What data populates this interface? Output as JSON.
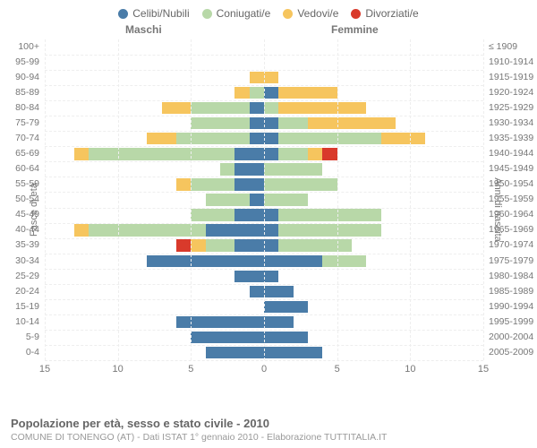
{
  "legend": [
    {
      "label": "Celibi/Nubili",
      "color": "#4a7ca8"
    },
    {
      "label": "Coniugati/e",
      "color": "#b8d8a8"
    },
    {
      "label": "Vedovi/e",
      "color": "#f6c55e"
    },
    {
      "label": "Divorziati/e",
      "color": "#d93a2b"
    }
  ],
  "headers": {
    "male": "Maschi",
    "female": "Femmine"
  },
  "axis_left_title": "Fasce di età",
  "axis_right_title": "Anni di nascita",
  "caption_title": "Popolazione per età, sesso e stato civile - 2010",
  "caption_sub": "COMUNE DI TONENGO (AT) - Dati ISTAT 1° gennaio 2010 - Elaborazione TUTTITALIA.IT",
  "x_max": 15,
  "x_ticks_male": [
    15,
    10,
    5,
    0
  ],
  "x_ticks_female": [
    5,
    10,
    15
  ],
  "colors": {
    "single": "#4a7ca8",
    "married": "#b8d8a8",
    "widowed": "#f6c55e",
    "divorced": "#d93a2b",
    "grid": "#eeeeee",
    "center": "#999999",
    "bg": "#ffffff"
  },
  "rows": [
    {
      "age": "100+",
      "birth": "≤ 1909",
      "m": {
        "s": 0,
        "m": 0,
        "w": 0,
        "d": 0
      },
      "f": {
        "s": 0,
        "m": 0,
        "w": 0,
        "d": 0
      }
    },
    {
      "age": "95-99",
      "birth": "1910-1914",
      "m": {
        "s": 0,
        "m": 0,
        "w": 0,
        "d": 0
      },
      "f": {
        "s": 0,
        "m": 0,
        "w": 0,
        "d": 0
      }
    },
    {
      "age": "90-94",
      "birth": "1915-1919",
      "m": {
        "s": 0,
        "m": 0,
        "w": 1,
        "d": 0
      },
      "f": {
        "s": 0,
        "m": 0,
        "w": 1,
        "d": 0
      }
    },
    {
      "age": "85-89",
      "birth": "1920-1924",
      "m": {
        "s": 0,
        "m": 1,
        "w": 1,
        "d": 0
      },
      "f": {
        "s": 1,
        "m": 0,
        "w": 4,
        "d": 0
      }
    },
    {
      "age": "80-84",
      "birth": "1925-1929",
      "m": {
        "s": 1,
        "m": 4,
        "w": 2,
        "d": 0
      },
      "f": {
        "s": 0,
        "m": 1,
        "w": 6,
        "d": 0
      }
    },
    {
      "age": "75-79",
      "birth": "1930-1934",
      "m": {
        "s": 1,
        "m": 4,
        "w": 0,
        "d": 0
      },
      "f": {
        "s": 1,
        "m": 2,
        "w": 6,
        "d": 0
      }
    },
    {
      "age": "70-74",
      "birth": "1935-1939",
      "m": {
        "s": 1,
        "m": 5,
        "w": 2,
        "d": 0
      },
      "f": {
        "s": 1,
        "m": 7,
        "w": 3,
        "d": 0
      }
    },
    {
      "age": "65-69",
      "birth": "1940-1944",
      "m": {
        "s": 2,
        "m": 10,
        "w": 1,
        "d": 0
      },
      "f": {
        "s": 1,
        "m": 2,
        "w": 1,
        "d": 1
      }
    },
    {
      "age": "60-64",
      "birth": "1945-1949",
      "m": {
        "s": 2,
        "m": 1,
        "w": 0,
        "d": 0
      },
      "f": {
        "s": 0,
        "m": 4,
        "w": 0,
        "d": 0
      }
    },
    {
      "age": "55-59",
      "birth": "1950-1954",
      "m": {
        "s": 2,
        "m": 3,
        "w": 1,
        "d": 0
      },
      "f": {
        "s": 0,
        "m": 5,
        "w": 0,
        "d": 0
      }
    },
    {
      "age": "50-54",
      "birth": "1955-1959",
      "m": {
        "s": 1,
        "m": 3,
        "w": 0,
        "d": 0
      },
      "f": {
        "s": 0,
        "m": 3,
        "w": 0,
        "d": 0
      }
    },
    {
      "age": "45-49",
      "birth": "1960-1964",
      "m": {
        "s": 2,
        "m": 3,
        "w": 0,
        "d": 0
      },
      "f": {
        "s": 1,
        "m": 7,
        "w": 0,
        "d": 0
      }
    },
    {
      "age": "40-44",
      "birth": "1965-1969",
      "m": {
        "s": 4,
        "m": 8,
        "w": 1,
        "d": 0
      },
      "f": {
        "s": 1,
        "m": 7,
        "w": 0,
        "d": 0
      }
    },
    {
      "age": "35-39",
      "birth": "1970-1974",
      "m": {
        "s": 2,
        "m": 2,
        "w": 1,
        "d": 1
      },
      "f": {
        "s": 1,
        "m": 5,
        "w": 0,
        "d": 0
      }
    },
    {
      "age": "30-34",
      "birth": "1975-1979",
      "m": {
        "s": 8,
        "m": 0,
        "w": 0,
        "d": 0
      },
      "f": {
        "s": 4,
        "m": 3,
        "w": 0,
        "d": 0
      }
    },
    {
      "age": "25-29",
      "birth": "1980-1984",
      "m": {
        "s": 2,
        "m": 0,
        "w": 0,
        "d": 0
      },
      "f": {
        "s": 1,
        "m": 0,
        "w": 0,
        "d": 0
      }
    },
    {
      "age": "20-24",
      "birth": "1985-1989",
      "m": {
        "s": 1,
        "m": 0,
        "w": 0,
        "d": 0
      },
      "f": {
        "s": 2,
        "m": 0,
        "w": 0,
        "d": 0
      }
    },
    {
      "age": "15-19",
      "birth": "1990-1994",
      "m": {
        "s": 0,
        "m": 0,
        "w": 0,
        "d": 0
      },
      "f": {
        "s": 3,
        "m": 0,
        "w": 0,
        "d": 0
      }
    },
    {
      "age": "10-14",
      "birth": "1995-1999",
      "m": {
        "s": 6,
        "m": 0,
        "w": 0,
        "d": 0
      },
      "f": {
        "s": 2,
        "m": 0,
        "w": 0,
        "d": 0
      }
    },
    {
      "age": "5-9",
      "birth": "2000-2004",
      "m": {
        "s": 5,
        "m": 0,
        "w": 0,
        "d": 0
      },
      "f": {
        "s": 3,
        "m": 0,
        "w": 0,
        "d": 0
      }
    },
    {
      "age": "0-4",
      "birth": "2005-2009",
      "m": {
        "s": 4,
        "m": 0,
        "w": 0,
        "d": 0
      },
      "f": {
        "s": 4,
        "m": 0,
        "w": 0,
        "d": 0
      }
    }
  ]
}
